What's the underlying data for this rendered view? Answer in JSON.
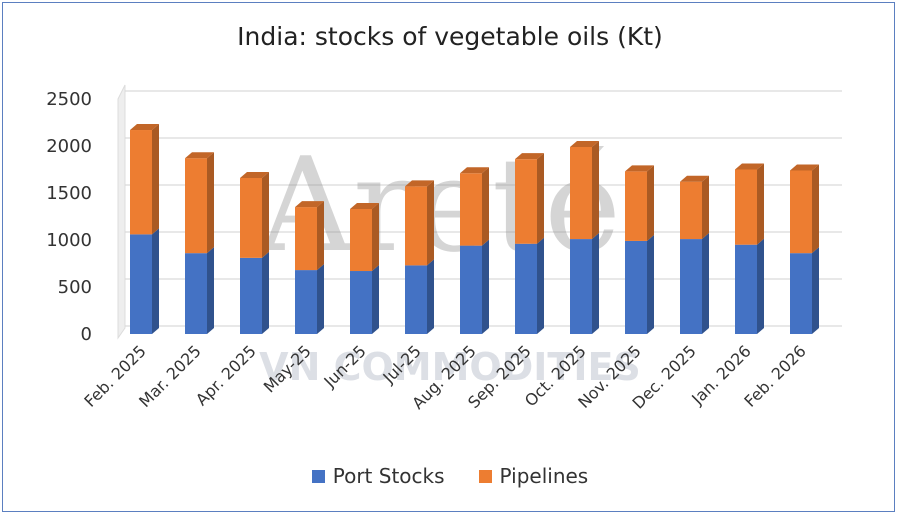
{
  "chart_data": {
    "type": "bar",
    "stacked": true,
    "three_d": true,
    "title": "India: stocks of vegetable oils (Kt)",
    "xlabel": "",
    "ylabel": "",
    "ylim": [
      0,
      2500
    ],
    "yticks": [
      0,
      500,
      1000,
      1500,
      2000,
      2500
    ],
    "grid": true,
    "legend_position": "bottom",
    "categories": [
      "Feb. 2025",
      "Mar. 2025",
      "Apr. 2025",
      "May-25",
      "Jun-25",
      "Jul-25",
      "Aug. 2025",
      "Sep. 2025",
      "Oct. 2025",
      "Nov. 2025",
      "Dec. 2025",
      "Jan. 2026",
      "Feb. 2026"
    ],
    "series": [
      {
        "name": "Port Stocks",
        "color": "#4472c4",
        "values": [
          1060,
          860,
          810,
          680,
          670,
          730,
          940,
          960,
          1010,
          990,
          1010,
          950,
          860
        ]
      },
      {
        "name": "Pipelines",
        "color": "#ed7d31",
        "values": [
          1110,
          1010,
          850,
          670,
          660,
          840,
          770,
          900,
          980,
          740,
          610,
          800,
          880
        ]
      }
    ]
  },
  "watermarks": [
    "Areté",
    "VN COMMODITIES"
  ]
}
